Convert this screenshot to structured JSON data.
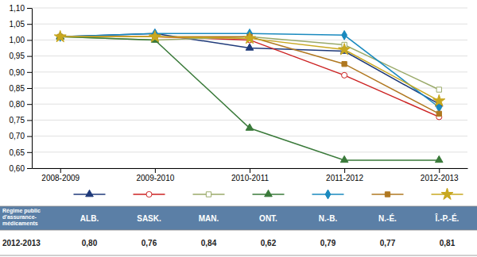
{
  "chart_data": {
    "type": "line",
    "categories": [
      "2008-2009",
      "2009-2010",
      "2010-2011",
      "2011-2012",
      "2012-2013"
    ],
    "series": [
      {
        "name": "ALB.",
        "color": "#1f3a7a",
        "marker": "triangle",
        "values": [
          1.01,
          1.02,
          0.975,
          0.965,
          0.8
        ]
      },
      {
        "name": "SASK.",
        "color": "#cc2222",
        "marker": "circle-open",
        "values": [
          1.01,
          1.01,
          1.0,
          0.89,
          0.76
        ]
      },
      {
        "name": "MAN.",
        "color": "#9aaa6a",
        "marker": "square-open",
        "values": [
          1.01,
          1.0,
          1.01,
          0.985,
          0.845
        ]
      },
      {
        "name": "ONT.",
        "color": "#3a7a3a",
        "marker": "triangle",
        "values": [
          1.01,
          1.0,
          0.725,
          0.625,
          0.625
        ]
      },
      {
        "name": "N.-B.",
        "color": "#1a8abf",
        "marker": "diamond",
        "values": [
          1.01,
          1.02,
          1.02,
          1.015,
          0.79
        ]
      },
      {
        "name": "N.-É.",
        "color": "#b07820",
        "marker": "square",
        "values": [
          1.01,
          1.01,
          1.01,
          0.925,
          0.77
        ]
      },
      {
        "name": "Î.-P.-É.",
        "color": "#c8a820",
        "marker": "star",
        "values": [
          1.01,
          1.01,
          1.005,
          0.97,
          0.81
        ]
      }
    ],
    "ylim": [
      0.6,
      1.1
    ],
    "yticks": [
      {
        "value": 0.6,
        "label": "0,60"
      },
      {
        "value": 0.65,
        "label": "0,65"
      },
      {
        "value": 0.7,
        "label": "0,70"
      },
      {
        "value": 0.75,
        "label": "0,75"
      },
      {
        "value": 0.8,
        "label": "0,80"
      },
      {
        "value": 0.85,
        "label": "0,85"
      },
      {
        "value": 0.9,
        "label": "0,90"
      },
      {
        "value": 0.95,
        "label": "0,95"
      },
      {
        "value": 1.0,
        "label": "1,00"
      },
      {
        "value": 1.05,
        "label": "1,05"
      },
      {
        "value": 1.1,
        "label": "1,10"
      }
    ],
    "grid": true,
    "legend": "bottom",
    "table": {
      "color": "#5b7fa6",
      "header": "Régime public\nd'assurance-\nmédicaments",
      "row_label": "2012-2013",
      "values": [
        0.8,
        0.76,
        0.84,
        0.62,
        0.79,
        0.77,
        0.81
      ],
      "value_labels": [
        "0,80",
        "0,76",
        "0,84",
        "0,62",
        "0,79",
        "0,77",
        "0,81"
      ]
    }
  }
}
